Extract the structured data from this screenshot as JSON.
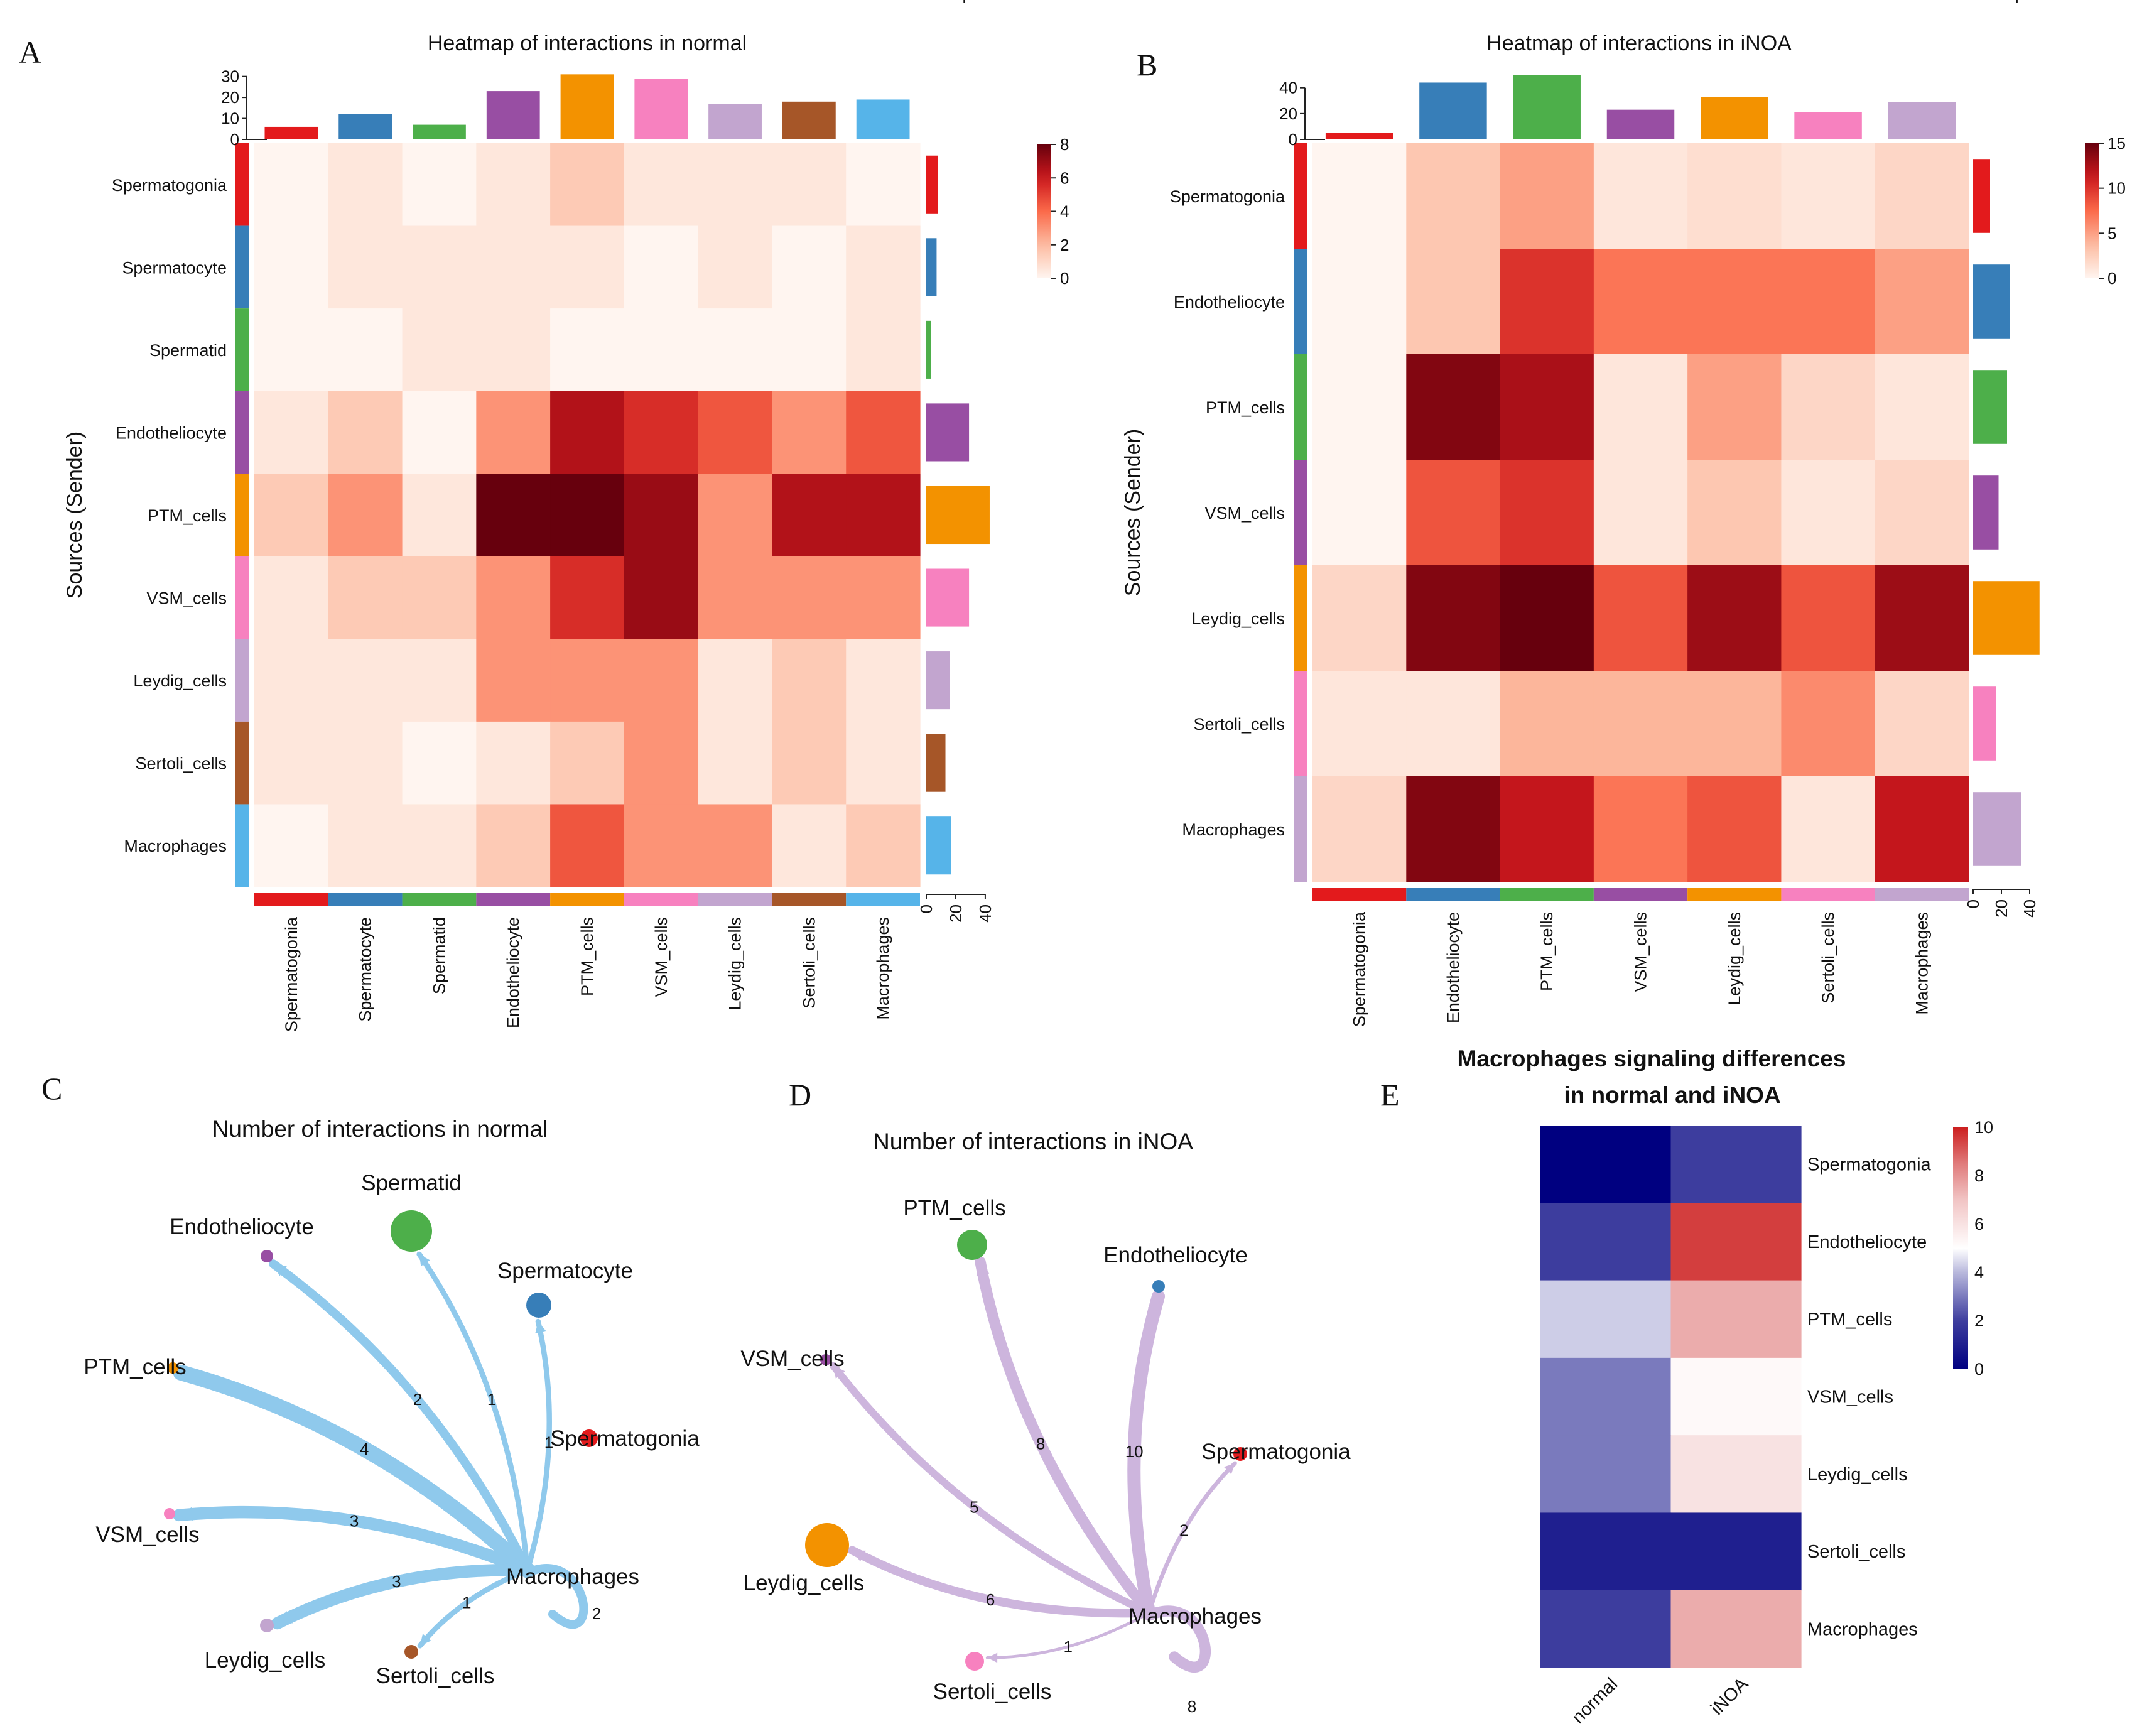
{
  "panel_letters": [
    "A",
    "B",
    "C",
    "D",
    "E"
  ],
  "chart_data": [
    {
      "id": "A",
      "type": "heatmap",
      "title": "Heatmap of interactions in normal",
      "ylabel": "Sources (Sender)",
      "legend_title": "Heatmap of interactions in normal",
      "colorbar": {
        "min": 0,
        "max": 8,
        "ticks": [
          0,
          2,
          4,
          6,
          8
        ]
      },
      "top_bar_ticks": [
        0,
        10,
        20,
        30
      ],
      "right_bar_ticks": [
        0,
        20,
        40
      ],
      "rows": [
        "Spermatogonia",
        "Spermatocyte",
        "Spermatid",
        "Endotheliocyte",
        "PTM_cells",
        "VSM_cells",
        "Leydig_cells",
        "Sertoli_cells",
        "Macrophages"
      ],
      "cols": [
        "Spermatogonia",
        "Spermatocyte",
        "Spermatid",
        "Endotheliocyte",
        "PTM_cells",
        "VSM_cells",
        "Leydig_cells",
        "Sertoli_cells",
        "Macrophages"
      ],
      "colors": [
        "#e31a1c",
        "#377eb8",
        "#4daf4a",
        "#984ea3",
        "#f39200",
        "#f781bf",
        "#c2a5cf",
        "#a65628",
        "#56b4e9"
      ],
      "values": [
        [
          0,
          0.5,
          0,
          0.5,
          1.5,
          0.5,
          0.5,
          0.5,
          0
        ],
        [
          0,
          0.5,
          0.5,
          0.5,
          0.5,
          0,
          0.5,
          0,
          0.5
        ],
        [
          0,
          0,
          0.5,
          0.5,
          0,
          0,
          0,
          0,
          0.5
        ],
        [
          0.5,
          1.5,
          0,
          3,
          6.5,
          5.5,
          4.5,
          3,
          4.5
        ],
        [
          1.5,
          3,
          0.5,
          8,
          8,
          7,
          3,
          6.5,
          6.5
        ],
        [
          0.5,
          1.5,
          1.5,
          3,
          5.5,
          7,
          3,
          3,
          3
        ],
        [
          0.5,
          0.5,
          0.5,
          3,
          3,
          3,
          0.5,
          1.5,
          0.5
        ],
        [
          0.5,
          0.5,
          0,
          0.5,
          1.5,
          3,
          0.5,
          1.5,
          0.5
        ],
        [
          0,
          0.5,
          0.5,
          1.5,
          4.5,
          3,
          3,
          0.5,
          1.5
        ]
      ],
      "top_bar_values": [
        6,
        12,
        7,
        23,
        31,
        29,
        17,
        18,
        19
      ],
      "right_bar_values": [
        8,
        7,
        3,
        29,
        43,
        29,
        16,
        13,
        17
      ]
    },
    {
      "id": "B",
      "type": "heatmap",
      "title": "Heatmap of interactions in iNOA",
      "ylabel": "Sources (Sender)",
      "legend_title": "Heatmap of interactions in iNOA",
      "colorbar": {
        "min": 0,
        "max": 15,
        "ticks": [
          0,
          5,
          10,
          15
        ]
      },
      "top_bar_ticks": [
        0,
        20,
        40
      ],
      "right_bar_ticks": [
        0,
        20,
        40
      ],
      "rows": [
        "Spermatogonia",
        "Endotheliocyte",
        "PTM_cells",
        "VSM_cells",
        "Leydig_cells",
        "Sertoli_cells",
        "Macrophages"
      ],
      "cols": [
        "Spermatogonia",
        "Endotheliocyte",
        "PTM_cells",
        "VSM_cells",
        "Leydig_cells",
        "Sertoli_cells",
        "Macrophages"
      ],
      "colors": [
        "#e31a1c",
        "#377eb8",
        "#4daf4a",
        "#984ea3",
        "#f39200",
        "#f781bf",
        "#c2a5cf"
      ],
      "values": [
        [
          0,
          3,
          5,
          1,
          1.5,
          1,
          2
        ],
        [
          0,
          3,
          10,
          7,
          7,
          7,
          5
        ],
        [
          0,
          14,
          12.5,
          1,
          5,
          2,
          1
        ],
        [
          0,
          8.5,
          10,
          1,
          3,
          1,
          2
        ],
        [
          2,
          14,
          15,
          8.5,
          13,
          8.5,
          13
        ],
        [
          1,
          1,
          4,
          4,
          4,
          6,
          2
        ],
        [
          2,
          14,
          11.5,
          7,
          8.5,
          1,
          11.5
        ]
      ],
      "top_bar_values": [
        5,
        44,
        50,
        23,
        33,
        21,
        29
      ],
      "right_bar_values": [
        12,
        26,
        24,
        18,
        47,
        16,
        34
      ]
    },
    {
      "id": "C",
      "type": "network",
      "title": "Number of interactions in normal",
      "source": "Macrophages",
      "edge_color": "#8fc9ec",
      "nodes": [
        {
          "name": "Spermatid",
          "color": "#4daf4a"
        },
        {
          "name": "Endotheliocyte",
          "color": "#984ea3"
        },
        {
          "name": "Spermatocyte",
          "color": "#377eb8"
        },
        {
          "name": "PTM_cells",
          "color": "#f39200"
        },
        {
          "name": "Spermatogonia",
          "color": "#e31a1c"
        },
        {
          "name": "VSM_cells",
          "color": "#f781bf"
        },
        {
          "name": "Macrophages",
          "color": "#56b4e9"
        },
        {
          "name": "Leydig_cells",
          "color": "#c2a5cf"
        },
        {
          "name": "Sertoli_cells",
          "color": "#a65628"
        }
      ],
      "edges": [
        {
          "to": "Spermatid",
          "value": 1
        },
        {
          "to": "Endotheliocyte",
          "value": 2
        },
        {
          "to": "Spermatocyte",
          "value": 1
        },
        {
          "to": "PTM_cells",
          "value": 4
        },
        {
          "to": "VSM_cells",
          "value": 3
        },
        {
          "to": "Leydig_cells",
          "value": 3
        },
        {
          "to": "Sertoli_cells",
          "value": 1
        },
        {
          "to": "Macrophages",
          "value": 2
        }
      ]
    },
    {
      "id": "D",
      "type": "network",
      "title": "Number of interactions in iNOA",
      "source": "Macrophages",
      "edge_color": "#cdb5dd",
      "nodes": [
        {
          "name": "PTM_cells",
          "color": "#4daf4a"
        },
        {
          "name": "Endotheliocyte",
          "color": "#377eb8"
        },
        {
          "name": "VSM_cells",
          "color": "#984ea3"
        },
        {
          "name": "Spermatogonia",
          "color": "#e31a1c"
        },
        {
          "name": "Leydig_cells",
          "color": "#f39200"
        },
        {
          "name": "Macrophages",
          "color": "#c2a5cf"
        },
        {
          "name": "Sertoli_cells",
          "color": "#f781bf"
        }
      ],
      "edges": [
        {
          "to": "PTM_cells",
          "value": 8
        },
        {
          "to": "Endotheliocyte",
          "value": 10
        },
        {
          "to": "VSM_cells",
          "value": 5
        },
        {
          "to": "Spermatogonia",
          "value": 2
        },
        {
          "to": "Leydig_cells",
          "value": 6
        },
        {
          "to": "Sertoli_cells",
          "value": 1
        },
        {
          "to": "Macrophages",
          "value": 8
        }
      ]
    },
    {
      "id": "E",
      "type": "heatmap",
      "title_lines": [
        "Macrophages signaling differences",
        "in normal and iNOA"
      ],
      "rows": [
        "Spermatogonia",
        "Endotheliocyte",
        "PTM_cells",
        "VSM_cells",
        "Leydig_cells",
        "Sertoli_cells",
        "Macrophages"
      ],
      "cols": [
        "normal",
        "iNOA"
      ],
      "colorbar": {
        "min": 0,
        "max": 10,
        "ticks": [
          0,
          2,
          4,
          6,
          8,
          10
        ]
      },
      "values": [
        [
          0,
          2
        ],
        [
          2,
          9.5
        ],
        [
          4.3,
          7.5
        ],
        [
          3,
          5.2
        ],
        [
          3,
          6
        ],
        [
          1,
          1
        ],
        [
          2,
          7.5
        ]
      ]
    }
  ]
}
